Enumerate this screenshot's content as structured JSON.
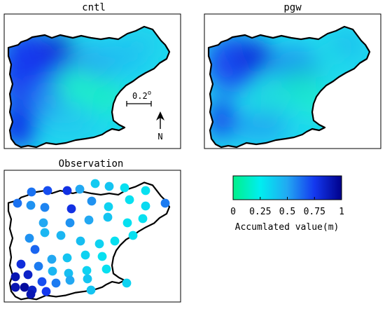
{
  "panels": {
    "cntl": {
      "title": "cntl"
    },
    "pgw": {
      "title": "pgw"
    },
    "observation": {
      "title": "Observation"
    }
  },
  "scale_bar": {
    "label": "0.2",
    "superscript": "o"
  },
  "north_arrow": {
    "label": "N"
  },
  "colorbar": {
    "ticks": [
      "0",
      "0.25",
      "0.5",
      "0.75",
      "1"
    ],
    "label": "Accumlated value(m)",
    "range": [
      0,
      1
    ],
    "colors": [
      "#00f08a",
      "#00f0ee",
      "#18aef2",
      "#1640f0",
      "#0000c8",
      "#00008c"
    ]
  },
  "colors": {
    "outline": "#000000",
    "frame": "#000000"
  }
}
